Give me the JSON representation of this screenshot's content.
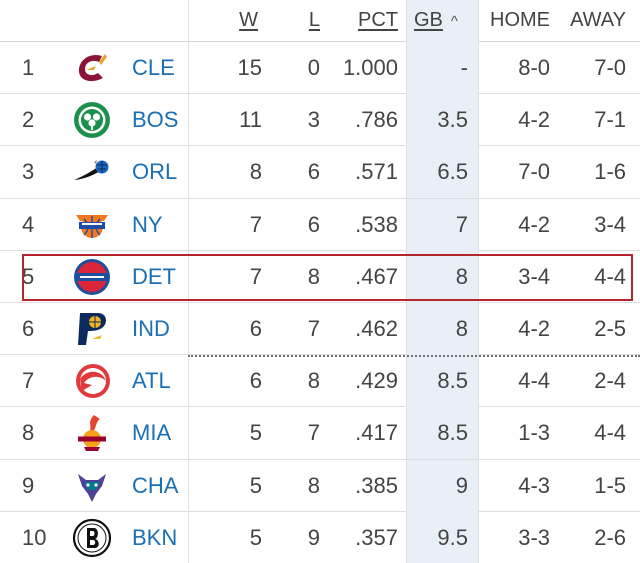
{
  "columns": {
    "w": "W",
    "l": "L",
    "pct": "PCT",
    "gb": "GB",
    "sort_indicator": "^",
    "home": "HOME",
    "away": "AWAY"
  },
  "colors": {
    "team_link": "#1a6fb5",
    "sorted_column_bg": "#e8eff7",
    "highlight_border": "#b2262c"
  },
  "teams": [
    {
      "rank": "1",
      "abbr": "CLE",
      "w": "15",
      "l": "0",
      "pct": "1.000",
      "gb": "-",
      "home": "8-0",
      "away": "7-0",
      "logo": "cavaliers-logo-icon"
    },
    {
      "rank": "2",
      "abbr": "BOS",
      "w": "11",
      "l": "3",
      "pct": ".786",
      "gb": "3.5",
      "home": "4-2",
      "away": "7-1",
      "logo": "celtics-logo-icon"
    },
    {
      "rank": "3",
      "abbr": "ORL",
      "w": "8",
      "l": "6",
      "pct": ".571",
      "gb": "6.5",
      "home": "7-0",
      "away": "1-6",
      "logo": "magic-logo-icon"
    },
    {
      "rank": "4",
      "abbr": "NY",
      "w": "7",
      "l": "6",
      "pct": ".538",
      "gb": "7",
      "home": "4-2",
      "away": "3-4",
      "logo": "knicks-logo-icon"
    },
    {
      "rank": "5",
      "abbr": "DET",
      "w": "7",
      "l": "8",
      "pct": ".467",
      "gb": "8",
      "home": "3-4",
      "away": "4-4",
      "logo": "pistons-logo-icon"
    },
    {
      "rank": "6",
      "abbr": "IND",
      "w": "6",
      "l": "7",
      "pct": ".462",
      "gb": "8",
      "home": "4-2",
      "away": "2-5",
      "logo": "pacers-logo-icon"
    },
    {
      "rank": "7",
      "abbr": "ATL",
      "w": "6",
      "l": "8",
      "pct": ".429",
      "gb": "8.5",
      "home": "4-4",
      "away": "2-4",
      "logo": "hawks-logo-icon"
    },
    {
      "rank": "8",
      "abbr": "MIA",
      "w": "5",
      "l": "7",
      "pct": ".417",
      "gb": "8.5",
      "home": "1-3",
      "away": "4-4",
      "logo": "heat-logo-icon"
    },
    {
      "rank": "9",
      "abbr": "CHA",
      "w": "5",
      "l": "8",
      "pct": ".385",
      "gb": "9",
      "home": "4-3",
      "away": "1-5",
      "logo": "hornets-logo-icon"
    },
    {
      "rank": "10",
      "abbr": "BKN",
      "w": "5",
      "l": "9",
      "pct": ".357",
      "gb": "9.5",
      "home": "3-3",
      "away": "2-6",
      "logo": "nets-logo-icon"
    }
  ]
}
